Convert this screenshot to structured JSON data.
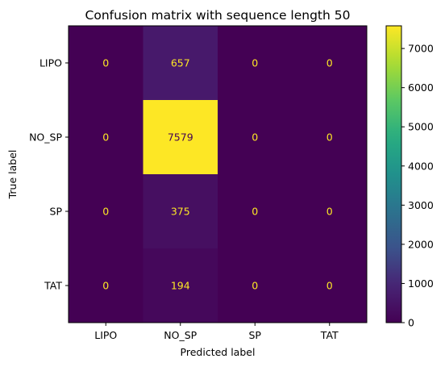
{
  "chart_data": {
    "type": "heatmap",
    "title": "Confusion matrix with sequence length 50",
    "xlabel": "Predicted label",
    "ylabel": "True label",
    "x_categories": [
      "LIPO",
      "NO_SP",
      "SP",
      "TAT"
    ],
    "y_categories": [
      "LIPO",
      "NO_SP",
      "SP",
      "TAT"
    ],
    "values": [
      [
        0,
        657,
        0,
        0
      ],
      [
        0,
        7579,
        0,
        0
      ],
      [
        0,
        375,
        0,
        0
      ],
      [
        0,
        194,
        0,
        0
      ]
    ],
    "colormap": "viridis",
    "colorbar": {
      "ticks": [
        0,
        1000,
        2000,
        3000,
        4000,
        5000,
        6000,
        7000
      ],
      "range": [
        0,
        7579
      ]
    },
    "grid": false,
    "text_colors": {
      "low": "#fde725",
      "high": "#440154"
    }
  }
}
